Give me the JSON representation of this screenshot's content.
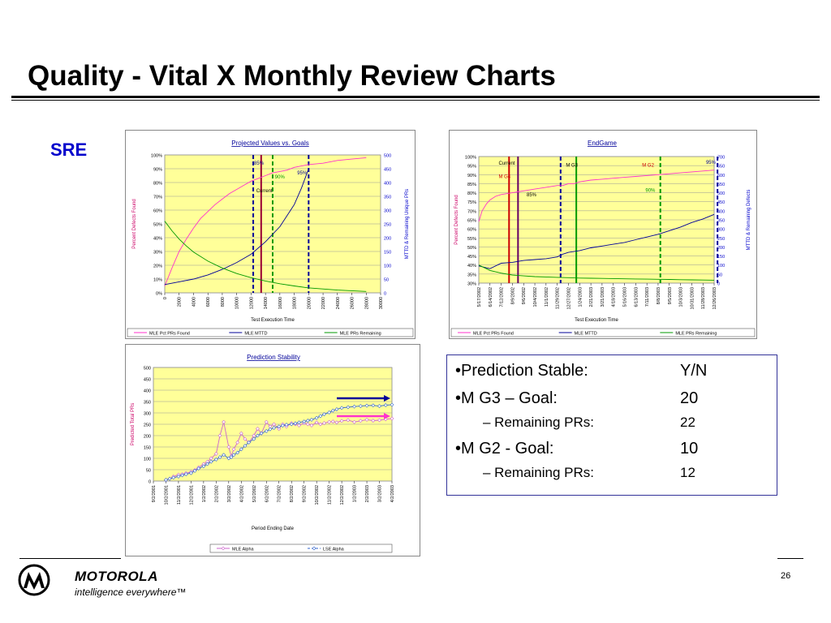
{
  "slide": {
    "title": "Quality - Vital X Monthly Review Charts",
    "section": "SRE",
    "page_number": "26"
  },
  "brand": {
    "name": "MOTOROLA",
    "tagline": "intelligence everywhere™"
  },
  "summary": {
    "rows": [
      {
        "label": "•Prediction Stable:",
        "value": "Y/N",
        "level": 0
      },
      {
        "label": "•M G3 – Goal:",
        "value": "20",
        "level": 0
      },
      {
        "label": "–   Remaining PRs:",
        "value": "22",
        "level": 1
      },
      {
        "label": "•M G2 - Goal:",
        "value": "10",
        "level": 0
      },
      {
        "label": "–   Remaining PRs:",
        "value": "12",
        "level": 1
      }
    ]
  },
  "colors": {
    "plot_bg": "#ffff99",
    "pink": "#ff33cc",
    "blue": "#000099",
    "green": "#009900",
    "title_blue": "#000099",
    "axis_right": "#0000cc"
  },
  "chart_data": [
    {
      "id": "projected",
      "type": "line",
      "title": "Projected Values vs. Goals",
      "xlabel": "Test Execution Time",
      "ylabel": "Percent Defects Found",
      "y2label": "MTTD & Remaining Unique PRs",
      "x_ticks": [
        "0",
        "2000",
        "4000",
        "6000",
        "8000",
        "10000",
        "12000",
        "14000",
        "16000",
        "18000",
        "20000",
        "22000",
        "24000",
        "26000",
        "28000",
        "30000"
      ],
      "xlim": [
        0,
        30000
      ],
      "y_ticks": [
        "0%",
        "10%",
        "20%",
        "30%",
        "40%",
        "50%",
        "60%",
        "70%",
        "80%",
        "90%",
        "100%"
      ],
      "ylim": [
        0,
        100
      ],
      "y2_ticks": [
        "0",
        "50",
        "100",
        "150",
        "200",
        "250",
        "300",
        "350",
        "400",
        "450",
        "500"
      ],
      "y2lim": [
        0,
        500
      ],
      "series": [
        {
          "name": "MLE Pct PRs Found",
          "color": "#ff33cc",
          "axis": "left",
          "x": [
            0,
            1000,
            2000,
            3000,
            4000,
            5000,
            6000,
            7000,
            8000,
            9000,
            10000,
            11000,
            12000,
            13000,
            14000,
            15000,
            16000,
            17000,
            18000,
            19000,
            20000,
            22000,
            24000,
            26000,
            28000
          ],
          "y": [
            5,
            18,
            30,
            39,
            47,
            54,
            59,
            64,
            68,
            72,
            75,
            78,
            81,
            83,
            85,
            87,
            88,
            89,
            91,
            92,
            93,
            94,
            96,
            97,
            98
          ]
        },
        {
          "name": "MLE MTTD",
          "color": "#000099",
          "axis": "right",
          "x": [
            0,
            2000,
            4000,
            6000,
            8000,
            10000,
            12000,
            14000,
            16000,
            18000,
            19000,
            20000
          ],
          "y": [
            30,
            40,
            50,
            65,
            85,
            110,
            140,
            185,
            240,
            320,
            380,
            450
          ]
        },
        {
          "name": "MLE PRs Remaining",
          "color": "#009900",
          "axis": "right",
          "x": [
            0,
            1000,
            2000,
            3000,
            4000,
            6000,
            8000,
            10000,
            12000,
            14000,
            16000,
            18000,
            20000,
            24000,
            28000
          ],
          "y": [
            260,
            225,
            195,
            170,
            148,
            115,
            90,
            70,
            55,
            43,
            33,
            25,
            18,
            10,
            5
          ]
        }
      ],
      "annotations": [
        {
          "text": "85%",
          "x": 12300,
          "y": 93,
          "color": "#000099"
        },
        {
          "text": "Current",
          "x": 12600,
          "y": 73,
          "color": "#000000"
        },
        {
          "text": "90%",
          "x": 15200,
          "y": 83,
          "color": "#009900"
        },
        {
          "text": "95%",
          "x": 18300,
          "y": 86,
          "color": "#000099"
        }
      ],
      "vlines": [
        {
          "x": 12300,
          "color": "#000099",
          "dash": true
        },
        {
          "x": 13400,
          "color": "#990033",
          "dash": false
        },
        {
          "x": 15000,
          "color": "#009900",
          "dash": true
        },
        {
          "x": 20000,
          "color": "#000099",
          "dash": true
        }
      ],
      "legend": [
        "MLE Pct PRs Found",
        "MLE MTTD",
        "MLE PRs Remaining"
      ],
      "legend_position": "bottom"
    },
    {
      "id": "endgame",
      "type": "line",
      "title": "EndGame",
      "xlabel": "Test Execution Time",
      "ylabel": "Percent Defects Found",
      "y2label": "MTTD & Remaining Defects",
      "x_ticks": [
        "5/17/2002",
        "6/14/2002",
        "7/12/2002",
        "8/9/2002",
        "9/6/2002",
        "10/4/2002",
        "11/1/2002",
        "11/29/2002",
        "12/27/2002",
        "1/24/2003",
        "2/21/2003",
        "3/21/2003",
        "4/18/2003",
        "5/16/2003",
        "6/13/2003",
        "7/11/2003",
        "8/8/2003",
        "9/5/2003",
        "10/3/2003",
        "10/31/2003",
        "11/28/2003",
        "12/26/2003"
      ],
      "y_ticks": [
        "30%",
        "35%",
        "40%",
        "45%",
        "50%",
        "55%",
        "60%",
        "65%",
        "70%",
        "75%",
        "80%",
        "85%",
        "90%",
        "95%",
        "100%"
      ],
      "ylim": [
        30,
        100
      ],
      "y2_ticks": [
        "0",
        "50",
        "100",
        "150",
        "200",
        "250",
        "300",
        "350",
        "400",
        "450",
        "500",
        "550",
        "600",
        "650",
        "700"
      ],
      "y2lim": [
        0,
        700
      ],
      "series": [
        {
          "name": "MLE Pct PRs Found",
          "color": "#ff33cc",
          "axis": "left",
          "x": [
            0,
            0.3,
            0.7,
            1,
            1.5,
            2,
            3,
            4,
            5,
            6,
            7,
            7.5,
            8,
            8.5,
            9,
            10,
            11,
            12,
            13,
            14,
            15,
            16,
            17,
            18,
            19,
            20,
            21
          ],
          "y": [
            64,
            70,
            74,
            76,
            78,
            79,
            80,
            81,
            82,
            83,
            84,
            84,
            85,
            85,
            86,
            87,
            87.5,
            88,
            88.5,
            89,
            89.5,
            90,
            90.5,
            91,
            91.5,
            92,
            92.5
          ]
        },
        {
          "name": "MLE MTTD",
          "color": "#000099",
          "axis": "right",
          "x": [
            0,
            1,
            2,
            3,
            4,
            5,
            6,
            7,
            7.5,
            8,
            9,
            10,
            11,
            12,
            13,
            14,
            15,
            16,
            17,
            18,
            19,
            20,
            21
          ],
          "y": [
            95,
            80,
            110,
            115,
            125,
            130,
            135,
            145,
            160,
            170,
            180,
            195,
            205,
            215,
            225,
            240,
            255,
            270,
            290,
            310,
            335,
            355,
            380
          ]
        },
        {
          "name": "MLE PRs Remaining",
          "color": "#009900",
          "axis": "right",
          "x": [
            0,
            1,
            2,
            3,
            4,
            5,
            6,
            7,
            8,
            9,
            10,
            11,
            12,
            13,
            14,
            15,
            16,
            17,
            18,
            19,
            20,
            21
          ],
          "y": [
            100,
            70,
            55,
            45,
            40,
            36,
            34,
            32,
            30,
            28,
            27,
            26,
            25,
            24,
            23,
            22,
            21,
            20,
            19,
            18,
            17,
            16
          ]
        }
      ],
      "annotations": [
        {
          "text": "Current",
          "x": 1.7,
          "y": 95.5,
          "color": "#000000"
        },
        {
          "text": "M G4",
          "x": 1.7,
          "y": 88,
          "color": "#cc0000"
        },
        {
          "text": "85%",
          "x": 4.2,
          "y": 78,
          "color": "#000000"
        },
        {
          "text": "M G3",
          "x": 7.7,
          "y": 94.5,
          "color": "#000000"
        },
        {
          "text": "M G2",
          "x": 14.5,
          "y": 94.5,
          "color": "#cc0000"
        },
        {
          "text": "90%",
          "x": 14.8,
          "y": 80.5,
          "color": "#009900"
        },
        {
          "text": "95%",
          "x": 20.2,
          "y": 96,
          "color": "#000099"
        }
      ],
      "vlines": [
        {
          "x": 2.7,
          "color": "#cc0000",
          "dash": false
        },
        {
          "x": 3.5,
          "color": "#660066",
          "dash": false
        },
        {
          "x": 7.3,
          "color": "#000099",
          "dash": true
        },
        {
          "x": 8.7,
          "color": "#009900",
          "dash": false
        },
        {
          "x": 16.2,
          "color": "#009900",
          "dash": true
        },
        {
          "x": 21.3,
          "color": "#000099",
          "dash": true
        }
      ],
      "legend": [
        "MLE Pct PRs Found",
        "MLE MTTD",
        "MLE PRs Remaining"
      ],
      "legend_position": "bottom"
    },
    {
      "id": "stability",
      "type": "line",
      "title": "Prediction Stability",
      "xlabel": "Period Ending Date",
      "ylabel": "Predicted Total PRs",
      "x_ticks": [
        "9/2/2001",
        "10/2/2001",
        "11/2/2001",
        "12/2/2001",
        "1/2/2002",
        "2/2/2002",
        "3/2/2002",
        "4/2/2002",
        "5/2/2002",
        "6/2/2002",
        "7/2/2002",
        "8/2/2002",
        "9/2/2002",
        "10/2/2002",
        "11/2/2002",
        "12/2/2002",
        "1/2/2003",
        "2/2/2003",
        "3/2/2003",
        "4/2/2003"
      ],
      "y_ticks": [
        "0",
        "50",
        "100",
        "150",
        "200",
        "250",
        "300",
        "350",
        "400",
        "450",
        "500"
      ],
      "ylim": [
        0,
        500
      ],
      "series": [
        {
          "name": "MLE Alpha",
          "color": "#cc66cc",
          "marker": "diamond",
          "x": [
            1,
            1.3,
            1.6,
            2,
            2.3,
            2.6,
            3,
            3.3,
            3.6,
            4,
            4.3,
            4.6,
            5,
            5.3,
            5.6,
            6,
            6.2,
            6.4,
            6.7,
            7,
            7.3,
            7.6,
            8,
            8.3,
            8.6,
            9,
            9.3,
            9.6,
            10,
            10.3,
            10.6,
            11,
            11.3,
            11.6,
            12,
            12.3,
            12.6,
            13,
            13.3,
            13.6,
            14,
            14.3,
            14.6,
            15,
            15.5,
            16,
            16.5,
            17,
            17.5,
            18,
            18.5,
            19
          ],
          "y": [
            5,
            10,
            20,
            28,
            30,
            35,
            40,
            48,
            60,
            75,
            85,
            100,
            120,
            200,
            260,
            150,
            110,
            140,
            170,
            210,
            185,
            170,
            200,
            230,
            210,
            260,
            240,
            250,
            230,
            250,
            240,
            255,
            250,
            245,
            255,
            250,
            245,
            258,
            250,
            255,
            260,
            262,
            258,
            265,
            268,
            260,
            265,
            270,
            266,
            268,
            272,
            275
          ]
        },
        {
          "name": "LSE Alpha",
          "color": "#3366cc",
          "marker": "diamond-open",
          "x": [
            1,
            1.3,
            1.6,
            2,
            2.3,
            2.6,
            3,
            3.3,
            3.6,
            4,
            4.3,
            4.6,
            5,
            5.3,
            5.6,
            6,
            6.2,
            6.4,
            6.7,
            7,
            7.3,
            7.6,
            8,
            8.3,
            8.6,
            9,
            9.3,
            9.6,
            10,
            10.3,
            10.6,
            11,
            11.3,
            11.6,
            12,
            12.3,
            12.6,
            13,
            13.3,
            13.6,
            14,
            14.3,
            14.6,
            15,
            15.5,
            16,
            16.5,
            17,
            17.5,
            18,
            18.5,
            19
          ],
          "y": [
            5,
            10,
            15,
            20,
            25,
            30,
            35,
            45,
            55,
            65,
            75,
            85,
            95,
            105,
            115,
            100,
            105,
            115,
            125,
            140,
            155,
            170,
            185,
            200,
            210,
            220,
            228,
            234,
            240,
            244,
            248,
            250,
            254,
            258,
            262,
            266,
            270,
            278,
            286,
            294,
            302,
            310,
            316,
            322,
            325,
            328,
            330,
            332,
            333,
            330,
            334,
            336
          ]
        }
      ],
      "legend": [
        "MLE Alpha",
        "LSE Alpha"
      ],
      "legend_position": "bottom"
    }
  ]
}
